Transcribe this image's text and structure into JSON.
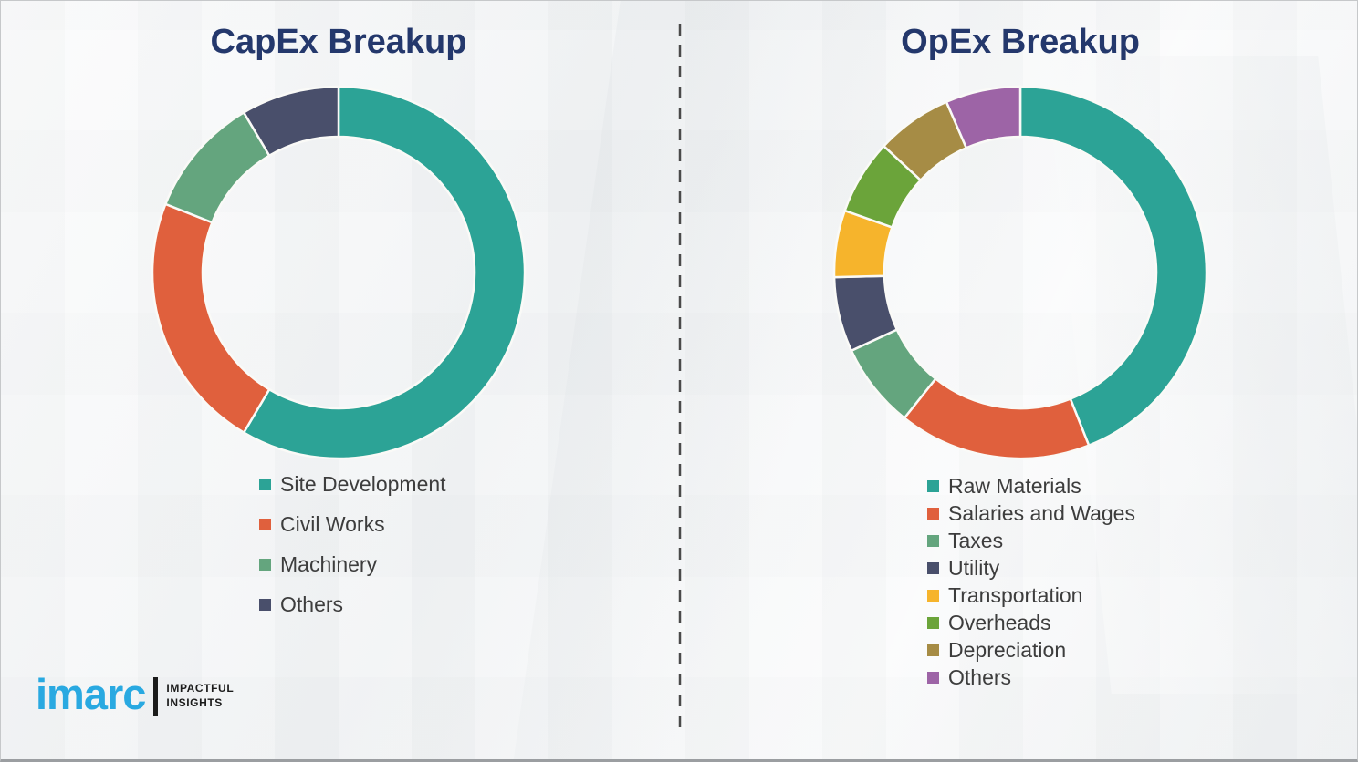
{
  "page": {
    "background_color": "#f3f4f5",
    "divider_color": "#4a4a4a",
    "title_color": "#24386c",
    "legend_text_color": "#3d3d3d"
  },
  "chart_data": [
    {
      "type": "donut",
      "title": "CapEx Breakup",
      "unit": "percent",
      "labels": [
        "Site Development",
        "Civil Works",
        "Machinery",
        "Others"
      ],
      "values": [
        58.5,
        22.5,
        10.5,
        8.5
      ],
      "colors": [
        "#2ca396",
        "#e0603d",
        "#64a57e",
        "#494f6b"
      ],
      "start_angle_deg": 0,
      "direction": "clockwise",
      "inner_radius_ratio": 0.73,
      "legend_position": "below-left"
    },
    {
      "type": "donut",
      "title": "OpEx Breakup",
      "unit": "percent",
      "labels": [
        "Raw Materials",
        "Salaries and Wages",
        "Taxes",
        "Utility",
        "Transportation",
        "Overheads",
        "Depreciation",
        "Others"
      ],
      "values": [
        44.0,
        16.7,
        7.4,
        6.5,
        5.8,
        6.5,
        6.6,
        6.5
      ],
      "colors": [
        "#2ca396",
        "#e0603d",
        "#64a57e",
        "#494f6b",
        "#f6b42c",
        "#6ba43a",
        "#a68c45",
        "#9d64a6"
      ],
      "start_angle_deg": 0,
      "direction": "clockwise",
      "inner_radius_ratio": 0.73,
      "legend_position": "below-left"
    }
  ],
  "logo": {
    "brand": "imarc",
    "brand_color": "#29a9e1",
    "tagline_line1": "IMPACTFUL",
    "tagline_line2": "INSIGHTS"
  }
}
